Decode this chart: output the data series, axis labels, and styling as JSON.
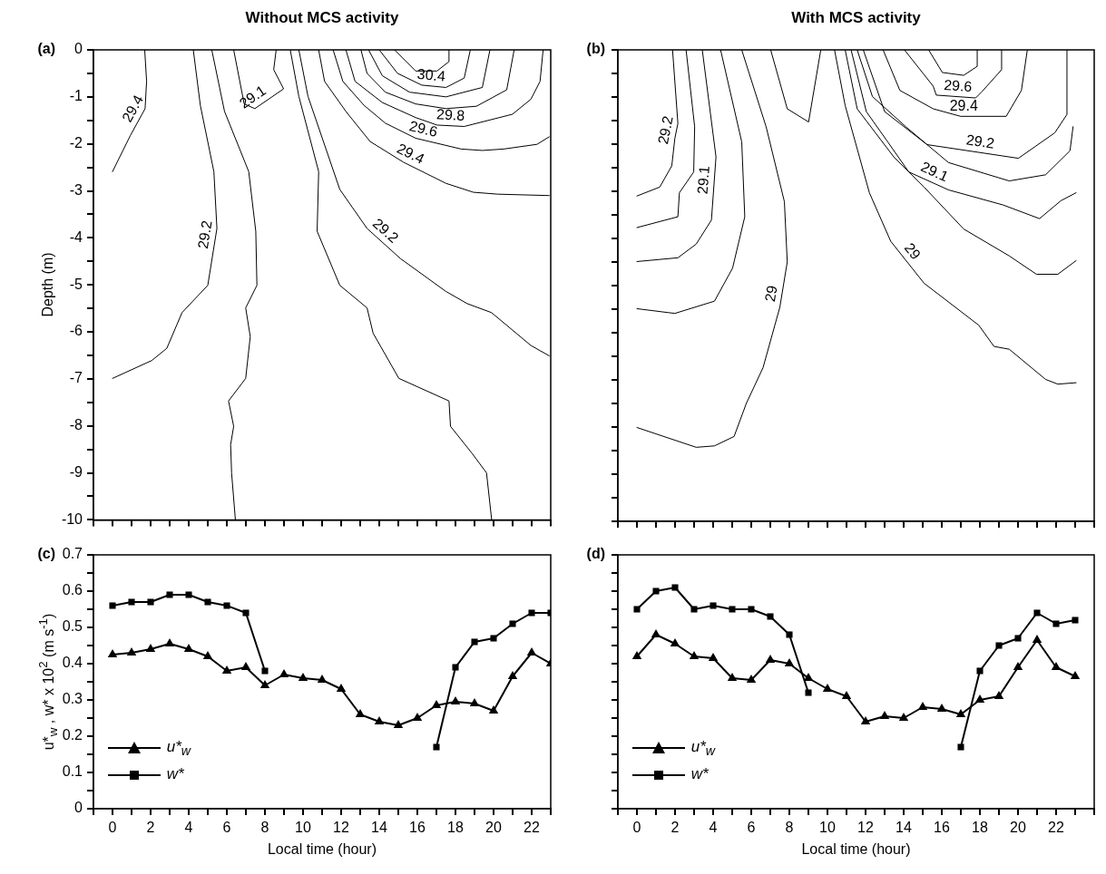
{
  "chart_data": [
    {
      "type": "line",
      "title": "Without MCS activity",
      "ylabel": "Depth (m)",
      "annotations": [
        "(a)"
      ],
      "legend": false,
      "tick_labels": "y",
      "marker": "none",
      "xlim": [
        -1,
        23
      ],
      "xticks": [
        {
          "value": -1,
          "label": null
        },
        0,
        {
          "value": 1,
          "label": null
        },
        2,
        {
          "value": 3,
          "label": null
        },
        4,
        {
          "value": 5,
          "label": null
        },
        6,
        {
          "value": 7,
          "label": null
        },
        8,
        {
          "value": 9,
          "label": null
        },
        10,
        {
          "value": 11,
          "label": null
        },
        12,
        {
          "value": 13,
          "label": null
        },
        14,
        {
          "value": 15,
          "label": null
        },
        16,
        {
          "value": 17,
          "label": null
        },
        18,
        {
          "value": 19,
          "label": null
        },
        20,
        {
          "value": 21,
          "label": null
        },
        22,
        {
          "value": 23,
          "label": null
        }
      ],
      "ylim": [
        -10,
        0
      ],
      "yticks": [
        0,
        {
          "value": -0.5,
          "label": null
        },
        -1,
        {
          "value": -1.5,
          "label": null
        },
        -2,
        {
          "value": -2.5,
          "label": null
        },
        -3,
        {
          "value": -3.5,
          "label": null
        },
        -4,
        {
          "value": -4.5,
          "label": null
        },
        -5,
        {
          "value": -5.5,
          "label": null
        },
        -6,
        {
          "value": -6.5,
          "label": null
        },
        -7,
        {
          "value": -7.5,
          "label": null
        },
        -8,
        {
          "value": -8.5,
          "label": null
        },
        -9,
        {
          "value": -9.5,
          "label": null
        },
        -10
      ],
      "series": [
        {
          "name": "29.4",
          "color": "#000000",
          "x": [
            1.69,
            1.79,
            1.71,
            0.94,
            0
          ],
          "values": [
            0,
            -0.67,
            -1.25,
            -1.82,
            -2.59
          ]
        },
        {
          "name": "29.2",
          "color": "#000000",
          "x": [
            4.24,
            4.61,
            5.32,
            5.48,
            5.0,
            3.65,
            2.85,
            2.06,
            0
          ],
          "values": [
            0,
            -1.18,
            -2.59,
            -3.8,
            -5.01,
            -5.59,
            -6.35,
            -6.61,
            -6.99
          ]
        },
        {
          "color": "#000000",
          "x": [
            5.21,
            5.88,
            7.15,
            7.52,
            7.58,
            6.99,
            7.23,
            6.99,
            6.09,
            6.36,
            6.2,
            6.25,
            6.45
          ],
          "values": [
            0,
            -1.31,
            -2.59,
            -3.86,
            -5.01,
            -5.49,
            -6.1,
            -6.99,
            -7.47,
            -8.01,
            -8.4,
            -9,
            -10
          ]
        },
        {
          "name": "29.1",
          "color": "#000000",
          "x": [
            6.36,
            6.91,
            7.47,
            8.98,
            8.46,
            8.59
          ],
          "values": [
            0,
            -1.15,
            -1.25,
            -0.83,
            -0.42,
            0
          ]
        },
        {
          "color": "#000000",
          "x": [
            9.33,
            9.78,
            10.82,
            10.74,
            11.93,
            13.36,
            13.68,
            15.03,
            17.66,
            17.74,
            18.9,
            19.63,
            19.9
          ],
          "values": [
            0,
            -0.99,
            -2.59,
            -3.86,
            -5.01,
            -5.49,
            -6.03,
            -6.99,
            -7.47,
            -8.01,
            -8.6,
            -9,
            -10
          ]
        },
        {
          "name": "29.2",
          "color": "#000000",
          "x": [
            9.78,
            10.26,
            11.93,
            13.36,
            15.11,
            17.5,
            18.62,
            19.89,
            21.96,
            22.92
          ],
          "values": [
            0,
            -0.99,
            -2.97,
            -3.8,
            -4.44,
            -5.14,
            -5.4,
            -5.59,
            -6.29,
            -6.51
          ]
        },
        {
          "name": "29.4",
          "color": "#000000",
          "x": [
            10.82,
            11.13,
            12.25,
            13.52,
            15.27,
            17.5,
            18.94,
            20.21,
            22.92
          ],
          "values": [
            0,
            -0.67,
            -1.31,
            -1.95,
            -2.39,
            -2.84,
            -3.03,
            -3.07,
            -3.1
          ]
        },
        {
          "name": "29.6",
          "color": "#000000",
          "x": [
            11.58,
            12.09,
            13.2,
            14.32,
            15.91,
            18.3,
            19.41,
            20.53,
            22.28,
            22.92
          ],
          "values": [
            0,
            -0.67,
            -1.18,
            -1.56,
            -1.88,
            -2.11,
            -2.14,
            -2.11,
            -2.01,
            -1.85
          ]
        },
        {
          "name": "29.8",
          "color": "#000000",
          "x": [
            12.25,
            12.73,
            14.16,
            15.91,
            17.03,
            18.46,
            20.99,
            21.96,
            22.44,
            22.6
          ],
          "values": [
            0,
            -0.67,
            -1.12,
            -1.44,
            -1.6,
            -1.63,
            -1.37,
            -1.05,
            -0.67,
            0
          ]
        },
        {
          "color": "#000000",
          "x": [
            13.04,
            13.36,
            14.32,
            15.91,
            17.5,
            19.1,
            20.69,
            21.08
          ],
          "values": [
            0,
            -0.5,
            -0.9,
            -1.15,
            -1.25,
            -1.2,
            -0.85,
            0
          ]
        },
        {
          "color": "#000000",
          "x": [
            13.44,
            14.16,
            15.59,
            17.5,
            19.41,
            19.81
          ],
          "values": [
            0,
            -0.55,
            -0.9,
            -1.0,
            -0.8,
            0
          ]
        },
        {
          "name": "30.4",
          "color": "#000000",
          "x": [
            14.0,
            14.96,
            16.23,
            17.5,
            18.46,
            18.78
          ],
          "values": [
            0,
            -0.5,
            -0.75,
            -0.8,
            -0.6,
            0
          ]
        },
        {
          "color": "#000000",
          "x": [
            14.8,
            15.91,
            17.03,
            17.66,
            17.66
          ],
          "values": [
            0,
            -0.45,
            -0.45,
            -0.25,
            0
          ]
        }
      ]
    },
    {
      "type": "line",
      "title": "With MCS activity",
      "annotations": [
        "(b)"
      ],
      "legend": false,
      "tick_labels": false,
      "marker": "none",
      "xlim": [
        -1,
        24
      ],
      "xticks": [
        {
          "value": -1,
          "label": null
        },
        0,
        {
          "value": 1,
          "label": null
        },
        2,
        {
          "value": 3,
          "label": null
        },
        4,
        {
          "value": 5,
          "label": null
        },
        6,
        {
          "value": 7,
          "label": null
        },
        8,
        {
          "value": 9,
          "label": null
        },
        10,
        {
          "value": 11,
          "label": null
        },
        12,
        {
          "value": 13,
          "label": null
        },
        14,
        {
          "value": 15,
          "label": null
        },
        16,
        {
          "value": 17,
          "label": null
        },
        18,
        {
          "value": 19,
          "label": null
        },
        20,
        {
          "value": 21,
          "label": null
        },
        22,
        {
          "value": 23,
          "label": null
        },
        {
          "value": 24,
          "label": null
        }
      ],
      "ylim": [
        -10,
        0
      ],
      "yticks": [
        0,
        {
          "value": -0.5,
          "label": null
        },
        -1,
        {
          "value": -1.5,
          "label": null
        },
        -2,
        {
          "value": -2.5,
          "label": null
        },
        -3,
        {
          "value": -3.5,
          "label": null
        },
        -4,
        {
          "value": -4.5,
          "label": null
        },
        -5,
        {
          "value": -5.5,
          "label": null
        },
        -6,
        {
          "value": -6.5,
          "label": null
        },
        -7,
        {
          "value": -7.5,
          "label": null
        },
        -8,
        {
          "value": -8.5,
          "label": null
        },
        -9,
        {
          "value": -9.5,
          "label": null
        },
        -10
      ],
      "series": [
        {
          "name": "29.2",
          "color": "#000000",
          "x": [
            1.87,
            2.15,
            1.99,
            1.83,
            1.2,
            0
          ],
          "values": [
            0,
            -1.56,
            -1.88,
            -2.46,
            -2.91,
            -3.1
          ]
        },
        {
          "color": "#000000",
          "x": [
            2.58,
            3.03,
            2.98,
            2.23,
            2.15,
            0
          ],
          "values": [
            0,
            -1.63,
            -2.59,
            -3.03,
            -3.54,
            -3.77
          ]
        },
        {
          "name": "29.1",
          "color": "#000000",
          "x": [
            3.43,
            4.15,
            3.91,
            3.11,
            2.15,
            0
          ],
          "values": [
            0,
            -2.27,
            -3.61,
            -4.12,
            -4.41,
            -4.49
          ]
        },
        {
          "color": "#000000",
          "x": [
            4.39,
            5.5,
            5.66,
            5.02,
            4.07,
            1.99,
            0
          ],
          "values": [
            0,
            -1.95,
            -3.54,
            -4.63,
            -5.33,
            -5.59,
            -5.49
          ]
        },
        {
          "name": "29",
          "color": "#000000",
          "x": [
            5.5,
            6.78,
            7.74,
            7.89,
            7.5,
            6.62,
            5.74,
            5.1,
            4.07,
            3.11,
            0
          ],
          "values": [
            0,
            -1.63,
            -3.22,
            -4.5,
            -5.46,
            -6.74,
            -7.5,
            -8.2,
            -8.4,
            -8.43,
            -8.01
          ]
        },
        {
          "color": "#000000",
          "x": [
            7.02,
            7.89,
            9.01,
            9.65
          ],
          "values": [
            0,
            -1.25,
            -1.53,
            0
          ]
        },
        {
          "name": "29",
          "color": "#000000",
          "x": [
            10.37,
            10.93,
            12.2,
            13.32,
            15.07,
            17.94,
            18.74,
            19.54,
            21.45,
            22.09,
            23.05
          ],
          "values": [
            0,
            -1.18,
            -3.03,
            -4.06,
            -4.95,
            -5.84,
            -6.29,
            -6.35,
            -6.99,
            -7.09,
            -7.06
          ]
        },
        {
          "color": "#000000",
          "x": [
            10.93,
            11.56,
            13.48,
            15.07,
            17.15,
            19.54,
            20.97,
            22.09,
            23.05
          ],
          "values": [
            0,
            -1.25,
            -2.27,
            -2.91,
            -3.8,
            -4.37,
            -4.76,
            -4.76,
            -4.47
          ]
        },
        {
          "name": "29.1",
          "color": "#000000",
          "x": [
            11.24,
            12.04,
            13.16,
            14.27,
            16.35,
            19.22,
            21.13,
            22.25,
            23.05
          ],
          "values": [
            0,
            -1.31,
            -1.95,
            -2.59,
            -2.97,
            -3.29,
            -3.58,
            -3.2,
            -3.03
          ]
        },
        {
          "color": "#000000",
          "x": [
            11.56,
            12.36,
            14.11,
            16.35,
            19.54,
            21.45,
            22.73,
            22.89
          ],
          "values": [
            0,
            -0.99,
            -1.63,
            -2.39,
            -2.78,
            -2.65,
            -2.14,
            -1.63
          ]
        },
        {
          "name": "29.2",
          "color": "#000000",
          "x": [
            11.88,
            13.0,
            15.23,
            20.02,
            21.93,
            22.57,
            22.57
          ],
          "values": [
            0,
            -1.31,
            -2.01,
            -2.3,
            -1.76,
            -1.37,
            0
          ]
        },
        {
          "name": "29.4",
          "color": "#000000",
          "x": [
            12.92,
            13.8,
            15.55,
            16.99,
            19.38,
            20.18,
            20.49
          ],
          "values": [
            0,
            -0.86,
            -1.25,
            -1.41,
            -1.41,
            -0.86,
            0
          ]
        },
        {
          "name": "29.6",
          "color": "#000000",
          "x": [
            14.04,
            15.55,
            15.71,
            17.78,
            18.1,
            19.14,
            19.14
          ],
          "values": [
            0,
            -0.77,
            -0.96,
            -1.02,
            -0.89,
            -0.42,
            0
          ]
        },
        {
          "color": "#000000",
          "x": [
            15.31,
            16.03,
            17.15,
            17.86,
            17.86
          ],
          "values": [
            0,
            -0.48,
            -0.54,
            -0.35,
            0
          ]
        }
      ]
    },
    {
      "type": "line",
      "xlabel": "Local time (hour)",
      "ylabel": "u*$_{w}$ , w* x 10$^{2}$ (m s$^{-1}$)",
      "annotations": [
        "(c)"
      ],
      "legend": "bottom left",
      "x": [
        0,
        1,
        2,
        3,
        4,
        5,
        6,
        7,
        8,
        9,
        10,
        11,
        12,
        13,
        14,
        15,
        16,
        17,
        18,
        19,
        20,
        21,
        22,
        23
      ],
      "xlim": [
        -1,
        23
      ],
      "xticks": [
        {
          "value": -1,
          "label": null
        },
        0,
        {
          "value": 1,
          "label": null
        },
        2,
        {
          "value": 3,
          "label": null
        },
        4,
        {
          "value": 5,
          "label": null
        },
        6,
        {
          "value": 7,
          "label": null
        },
        8,
        {
          "value": 9,
          "label": null
        },
        10,
        {
          "value": 11,
          "label": null
        },
        12,
        {
          "value": 13,
          "label": null
        },
        14,
        {
          "value": 15,
          "label": null
        },
        16,
        {
          "value": 17,
          "label": null
        },
        18,
        {
          "value": 19,
          "label": null
        },
        20,
        {
          "value": 21,
          "label": null
        },
        22,
        {
          "value": 23,
          "label": null
        }
      ],
      "ylim": [
        0,
        0.7
      ],
      "yticks": [
        0,
        {
          "value": 0.05,
          "label": null
        },
        0.1,
        {
          "value": 0.15,
          "label": null
        },
        0.2,
        {
          "value": 0.25,
          "label": null
        },
        0.3,
        {
          "value": 0.35,
          "label": null
        },
        0.4,
        {
          "value": 0.45,
          "label": null
        },
        0.5,
        {
          "value": 0.55,
          "label": null
        },
        0.6,
        {
          "value": 0.65,
          "label": null
        },
        0.7
      ],
      "series": [
        {
          "name": "u*$_{w}$",
          "color": "#000000",
          "marker": "triangle",
          "values": [
            0.425,
            0.43,
            0.44,
            0.455,
            0.44,
            0.42,
            0.38,
            0.39,
            0.34,
            0.37,
            0.36,
            0.355,
            0.33,
            0.26,
            0.24,
            0.23,
            0.25,
            0.285,
            0.295,
            0.29,
            0.27,
            0.365,
            0.43,
            0.4
          ]
        },
        {
          "name": "w*",
          "color": "#000000",
          "marker": "square",
          "values": [
            0.56,
            0.57,
            0.57,
            0.59,
            0.59,
            0.57,
            0.56,
            0.54,
            0.38,
            null,
            null,
            null,
            null,
            null,
            null,
            null,
            null,
            0.17,
            0.39,
            0.46,
            0.47,
            0.51,
            0.54,
            0.54
          ]
        }
      ]
    },
    {
      "type": "line",
      "xlabel": "Local time (hour)",
      "annotations": [
        "(d)"
      ],
      "legend": "bottom left",
      "tick_labels": "x",
      "x": [
        0,
        1,
        2,
        3,
        4,
        5,
        6,
        7,
        8,
        9,
        10,
        11,
        12,
        13,
        14,
        15,
        16,
        17,
        18,
        19,
        20,
        21,
        22,
        23
      ],
      "xlim": [
        -1,
        24
      ],
      "xticks": [
        {
          "value": -1,
          "label": null
        },
        0,
        {
          "value": 1,
          "label": null
        },
        2,
        {
          "value": 3,
          "label": null
        },
        4,
        {
          "value": 5,
          "label": null
        },
        6,
        {
          "value": 7,
          "label": null
        },
        8,
        {
          "value": 9,
          "label": null
        },
        10,
        {
          "value": 11,
          "label": null
        },
        12,
        {
          "value": 13,
          "label": null
        },
        14,
        {
          "value": 15,
          "label": null
        },
        16,
        {
          "value": 17,
          "label": null
        },
        18,
        {
          "value": 19,
          "label": null
        },
        20,
        {
          "value": 21,
          "label": null
        },
        22,
        {
          "value": 23,
          "label": null
        },
        {
          "value": 24,
          "label": null
        }
      ],
      "ylim": [
        0,
        0.7
      ],
      "yticks": [
        0,
        {
          "value": 0.05,
          "label": null
        },
        0.1,
        {
          "value": 0.15,
          "label": null
        },
        0.2,
        {
          "value": 0.25,
          "label": null
        },
        0.3,
        {
          "value": 0.35,
          "label": null
        },
        0.4,
        {
          "value": 0.45,
          "label": null
        },
        0.5,
        {
          "value": 0.55,
          "label": null
        },
        0.6,
        {
          "value": 0.65,
          "label": null
        },
        0.7
      ],
      "series": [
        {
          "name": "u*$_{w}$",
          "color": "#000000",
          "marker": "triangle",
          "values": [
            0.42,
            0.48,
            0.455,
            0.42,
            0.415,
            0.36,
            0.355,
            0.41,
            0.4,
            0.36,
            0.33,
            0.31,
            0.24,
            0.255,
            0.25,
            0.28,
            0.275,
            0.26,
            0.3,
            0.31,
            0.39,
            0.465,
            0.39,
            0.365
          ]
        },
        {
          "name": "w*",
          "color": "#000000",
          "marker": "square",
          "values": [
            0.55,
            0.6,
            0.61,
            0.55,
            0.56,
            0.55,
            0.55,
            0.53,
            0.48,
            0.32,
            null,
            null,
            null,
            null,
            null,
            null,
            null,
            0.17,
            0.38,
            0.45,
            0.47,
            0.54,
            0.51,
            0.52
          ]
        }
      ]
    }
  ]
}
